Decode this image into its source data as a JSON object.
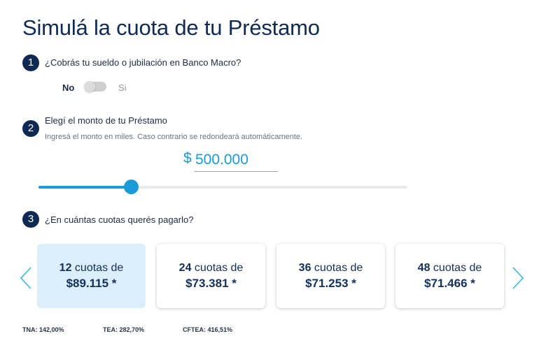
{
  "title": "Simulá la cuota de tu Préstamo",
  "step1": {
    "number": "1",
    "question": "¿Cobrás tu sueldo o jubilación en Banco Macro?",
    "no_label": "No",
    "si_label": "Si",
    "toggle_on": false
  },
  "step2": {
    "number": "2",
    "question": "Elegí el monto de tu Préstamo",
    "hint": "Ingresá el monto en miles. Caso contrario se redondeará automáticamente.",
    "currency": "$",
    "amount": "500.000",
    "slider_fraction": 0.25
  },
  "step3": {
    "number": "3",
    "question": "¿En cuántas cuotas querés pagarlo?"
  },
  "cards": [
    {
      "n": "12",
      "label": "cuotas de",
      "amount": "$89.115 *",
      "selected": true
    },
    {
      "n": "24",
      "label": "cuotas de",
      "amount": "$73.381 *",
      "selected": false
    },
    {
      "n": "36",
      "label": "cuotas de",
      "amount": "$71.253 *",
      "selected": false
    },
    {
      "n": "48",
      "label": "cuotas de",
      "amount": "$71.466 *",
      "selected": false
    }
  ],
  "rates": {
    "tna": "TNA: 142,00%",
    "tea": "TEA: 282,70%",
    "cftea": "CFTEA: 416,51%"
  },
  "icons": {
    "prev": "chevron-left-icon",
    "next": "chevron-right-icon"
  },
  "colors": {
    "accent": "#1a9bd7",
    "navy": "#0e2a53",
    "selected_card": "#dbeefb"
  }
}
